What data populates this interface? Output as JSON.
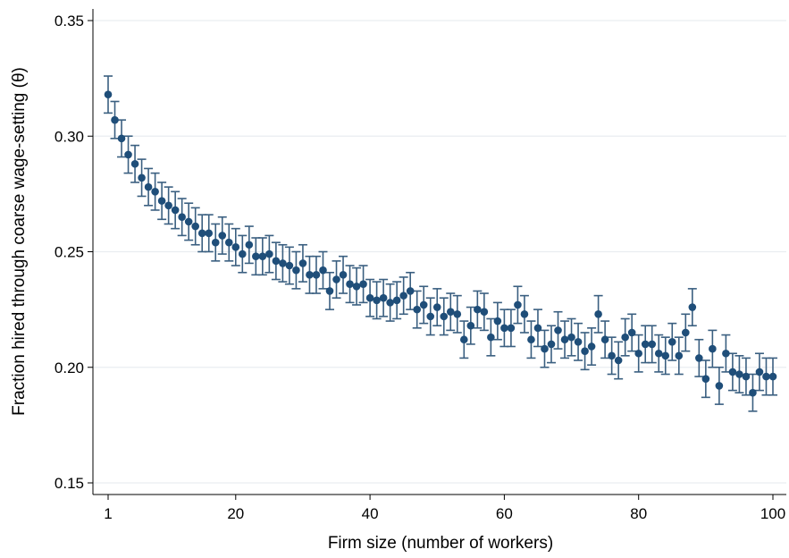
{
  "chart_data": {
    "type": "scatter",
    "title": "",
    "xlabel": "Firm size (number of workers)",
    "ylabel": "Fraction hired through coarse wage-setting (θ)",
    "xlim": [
      0,
      102
    ],
    "ylim": [
      0.145,
      0.355
    ],
    "xticks": [
      1,
      20,
      40,
      60,
      80,
      100
    ],
    "xtick_labels": [
      "1",
      "20",
      "40",
      "60",
      "80",
      "100"
    ],
    "yticks": [
      0.15,
      0.2,
      0.25,
      0.3,
      0.35
    ],
    "ytick_labels": [
      "0.15",
      "0.20",
      "0.25",
      "0.30",
      "0.35"
    ],
    "grid": "horizontal",
    "legend": "none",
    "marker_color": "#1f4e79",
    "errorbar_color": "#3a5f80",
    "series": [
      {
        "x": [
          1,
          2,
          3,
          4,
          5,
          6,
          7,
          8,
          9,
          10,
          11,
          12,
          13,
          14,
          15,
          16,
          17,
          18,
          19,
          20,
          21,
          22,
          23,
          24,
          25,
          26,
          27,
          28,
          29,
          30,
          31,
          32,
          33,
          34,
          35,
          36,
          37,
          38,
          39,
          40,
          41,
          42,
          43,
          44,
          45,
          46,
          47,
          48,
          49,
          50,
          51,
          52,
          53,
          54,
          55,
          56,
          57,
          58,
          59,
          60,
          61,
          62,
          63,
          64,
          65,
          66,
          67,
          68,
          69,
          70,
          71,
          72,
          73,
          74,
          75,
          76,
          77,
          78,
          79,
          80,
          81,
          82,
          83,
          84,
          85,
          86,
          87,
          88,
          89,
          90,
          91,
          92,
          93,
          94,
          95,
          96,
          97,
          98,
          99,
          100
        ],
        "y": [
          0.318,
          0.307,
          0.299,
          0.292,
          0.288,
          0.282,
          0.278,
          0.276,
          0.272,
          0.27,
          0.268,
          0.265,
          0.263,
          0.261,
          0.258,
          0.258,
          0.254,
          0.257,
          0.254,
          0.252,
          0.249,
          0.253,
          0.248,
          0.248,
          0.249,
          0.246,
          0.245,
          0.244,
          0.242,
          0.245,
          0.24,
          0.24,
          0.242,
          0.233,
          0.238,
          0.24,
          0.236,
          0.235,
          0.236,
          0.23,
          0.229,
          0.23,
          0.228,
          0.229,
          0.231,
          0.233,
          0.225,
          0.227,
          0.222,
          0.226,
          0.222,
          0.224,
          0.223,
          0.212,
          0.218,
          0.225,
          0.224,
          0.213,
          0.22,
          0.217,
          0.217,
          0.227,
          0.223,
          0.212,
          0.217,
          0.208,
          0.21,
          0.216,
          0.212,
          0.213,
          0.211,
          0.207,
          0.209,
          0.223,
          0.212,
          0.205,
          0.203,
          0.213,
          0.215,
          0.206,
          0.21,
          0.21,
          0.206,
          0.205,
          0.211,
          0.205,
          0.215,
          0.226,
          0.204,
          0.195,
          0.208,
          0.192,
          0.206,
          0.198,
          0.197,
          0.196,
          0.189,
          0.198,
          0.196,
          0.196
        ],
        "error": 0.008
      }
    ]
  }
}
